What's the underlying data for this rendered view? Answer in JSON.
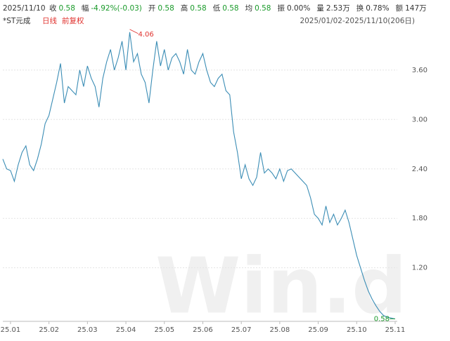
{
  "header": {
    "date": "2025/11/10",
    "items": [
      {
        "label": "收",
        "value": "0.58",
        "tone": "down"
      },
      {
        "label": "幅",
        "value": "-4.92%(-0.03)",
        "tone": "down"
      },
      {
        "label": "开",
        "value": "0.58",
        "tone": "down"
      },
      {
        "label": "高",
        "value": "0.58",
        "tone": "down"
      },
      {
        "label": "低",
        "value": "0.58",
        "tone": "down"
      },
      {
        "label": "均",
        "value": "0.58",
        "tone": "down"
      },
      {
        "label": "振",
        "value": "0.00%",
        "tone": "flat"
      },
      {
        "label": "量",
        "value": "2.53万",
        "tone": "flat"
      },
      {
        "label": "换",
        "value": "0.78%",
        "tone": "flat"
      },
      {
        "label": "额",
        "value": "147万",
        "tone": "flat"
      }
    ],
    "stock": "*ST元成",
    "period": "日线",
    "adjust": "前复权",
    "range": "2025/01/02-2025/11/10(206日)"
  },
  "chart_data": {
    "type": "line",
    "watermark": "Win.d",
    "categories": [
      null,
      null,
      "25.01",
      null,
      null,
      null,
      null,
      null,
      null,
      null,
      null,
      null,
      "25.02",
      null,
      null,
      null,
      null,
      null,
      null,
      null,
      null,
      null,
      "25.03",
      null,
      null,
      null,
      null,
      null,
      null,
      null,
      null,
      null,
      "25.04",
      null,
      null,
      null,
      null,
      null,
      null,
      null,
      null,
      null,
      "25.05",
      null,
      null,
      null,
      null,
      null,
      null,
      null,
      null,
      null,
      "25.06",
      null,
      null,
      null,
      null,
      null,
      null,
      null,
      null,
      null,
      "25.07",
      null,
      null,
      null,
      null,
      null,
      null,
      null,
      null,
      null,
      "25.08",
      null,
      null,
      null,
      null,
      null,
      null,
      null,
      null,
      null,
      "25.09",
      null,
      null,
      null,
      null,
      null,
      null,
      null,
      null,
      null,
      "25.10",
      null,
      null,
      null,
      null,
      null,
      null,
      null,
      null,
      null,
      "25.11"
    ],
    "series": [
      {
        "name": "*ST元成",
        "color": "#3b8db5",
        "values": [
          2.52,
          2.4,
          2.38,
          2.25,
          2.45,
          2.6,
          2.68,
          2.45,
          2.38,
          2.52,
          2.7,
          2.95,
          3.05,
          3.25,
          3.45,
          3.68,
          3.2,
          3.4,
          3.35,
          3.3,
          3.6,
          3.4,
          3.65,
          3.5,
          3.4,
          3.15,
          3.5,
          3.7,
          3.85,
          3.6,
          3.75,
          3.95,
          3.6,
          4.06,
          3.7,
          3.8,
          3.55,
          3.45,
          3.2,
          3.6,
          3.95,
          3.65,
          3.85,
          3.6,
          3.75,
          3.8,
          3.7,
          3.55,
          3.85,
          3.6,
          3.55,
          3.7,
          3.8,
          3.6,
          3.45,
          3.4,
          3.5,
          3.55,
          3.35,
          3.3,
          2.85,
          2.6,
          2.28,
          2.45,
          2.28,
          2.2,
          2.3,
          2.6,
          2.35,
          2.4,
          2.35,
          2.28,
          2.4,
          2.25,
          2.38,
          2.4,
          2.35,
          2.3,
          2.25,
          2.2,
          2.05,
          1.85,
          1.8,
          1.72,
          1.95,
          1.75,
          1.85,
          1.72,
          1.8,
          1.9,
          1.75,
          1.55,
          1.35,
          1.2,
          1.05,
          0.92,
          0.82,
          0.74,
          0.67,
          0.62,
          0.6,
          0.59,
          0.58
        ]
      }
    ],
    "max_label": "4.06",
    "last_label": "0.58",
    "ylim": [
      0.55,
      4.28
    ],
    "yticks": [
      {
        "value": 1.2,
        "label": "1.20"
      },
      {
        "value": 1.8,
        "label": "1.80"
      },
      {
        "value": 2.4,
        "label": "2.40"
      },
      {
        "value": 3.0,
        "label": "3.00"
      },
      {
        "value": 3.6,
        "label": "3.60"
      }
    ],
    "grid": true
  }
}
